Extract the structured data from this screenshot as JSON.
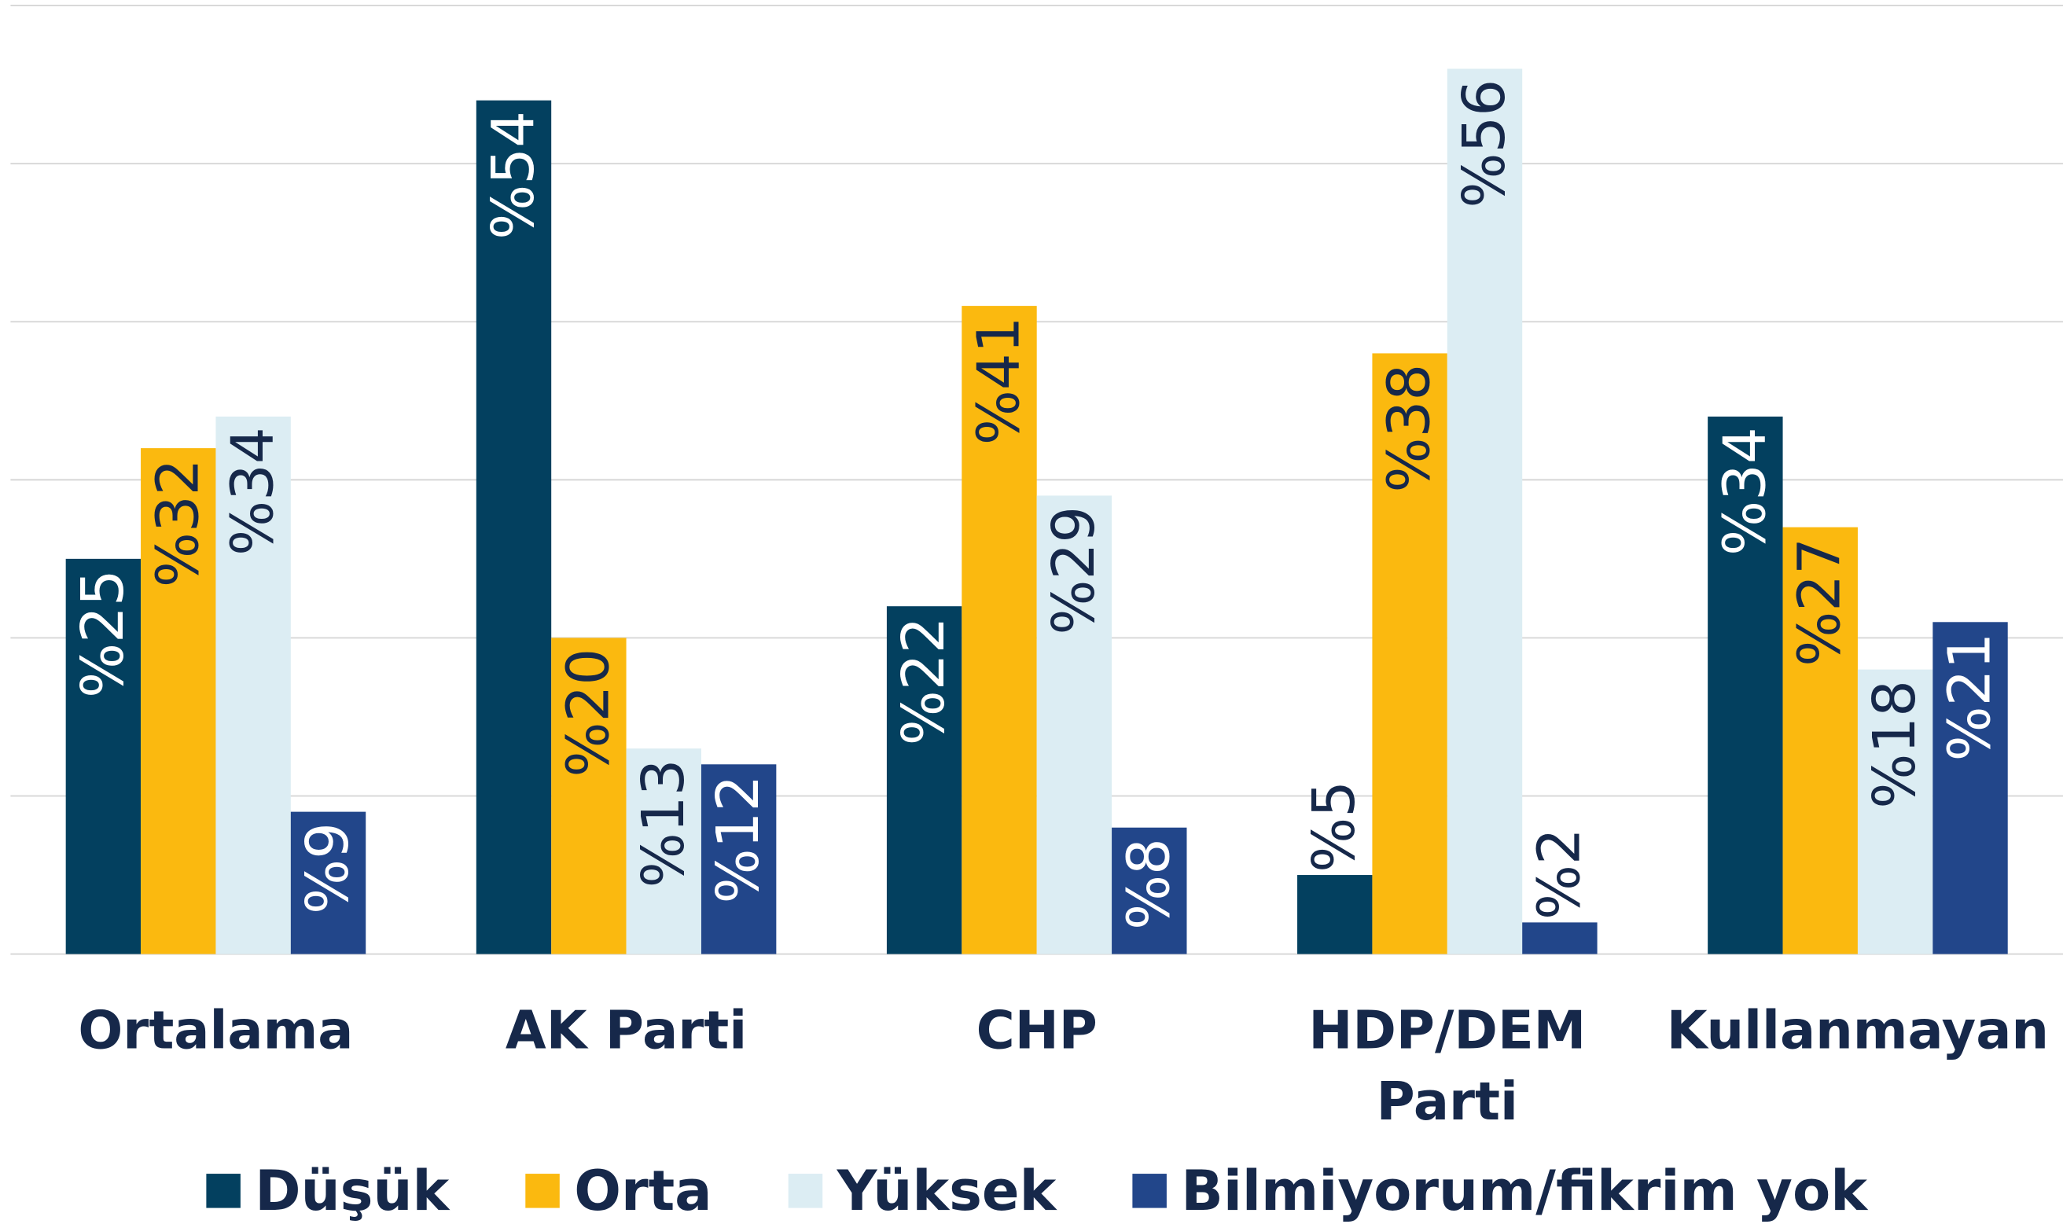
{
  "chart_data": {
    "type": "bar",
    "categories": [
      "Ortalama",
      "AK Parti",
      "CHP",
      "HDP/DEM Parti",
      "Kullanmayan"
    ],
    "series": [
      {
        "name": "Düşük",
        "color": "#03405f",
        "values": [
          25,
          54,
          22,
          5,
          34
        ],
        "value_labels": [
          "%25",
          "%54",
          "%22",
          "%5",
          "%34"
        ]
      },
      {
        "name": "Orta",
        "color": "#fbb90f",
        "values": [
          32,
          20,
          41,
          38,
          27
        ],
        "value_labels": [
          "%32",
          "%20",
          "%41",
          "%38",
          "%27"
        ]
      },
      {
        "name": "Yüksek",
        "color": "#dcedf3",
        "values": [
          34,
          13,
          29,
          56,
          18
        ],
        "value_labels": [
          "%34",
          "%13",
          "%29",
          "%56",
          "%18"
        ]
      },
      {
        "name": "Bilmiyorum/fikrim yok",
        "color": "#22468a",
        "values": [
          9,
          12,
          8,
          2,
          21
        ],
        "value_labels": [
          "%9",
          "%12",
          "%8",
          "%2",
          "%21"
        ]
      }
    ],
    "ylim": [
      0,
      60
    ],
    "yticks": [
      0,
      10,
      20,
      30,
      40,
      50,
      60
    ],
    "grid": true,
    "legend": "bottom"
  }
}
